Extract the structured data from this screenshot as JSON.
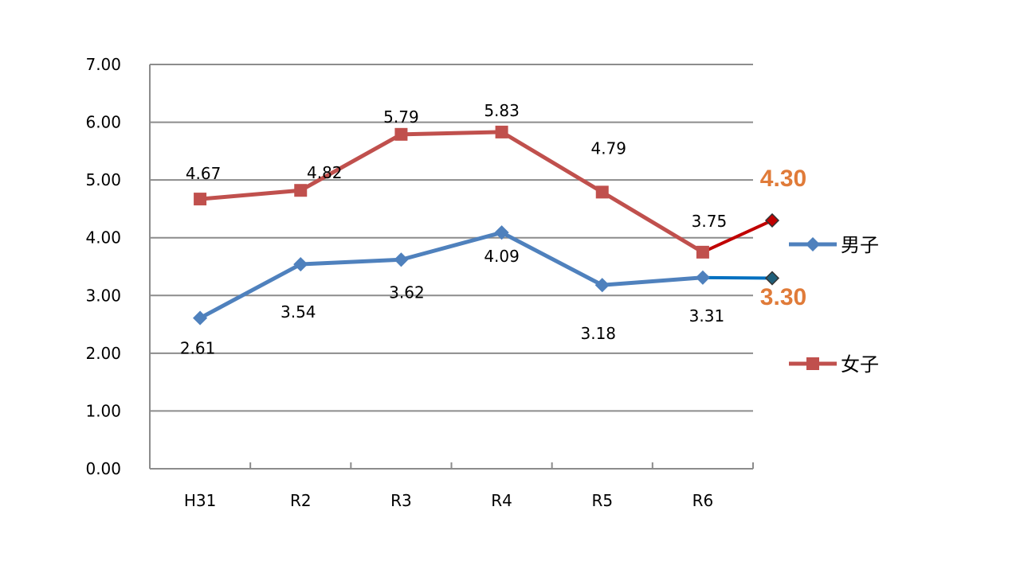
{
  "chart_data": {
    "type": "line",
    "categories": [
      "H31",
      "R2",
      "R3",
      "R4",
      "R5",
      "R6"
    ],
    "ylim": [
      0,
      7
    ],
    "yticks": [
      "0.00",
      "1.00",
      "2.00",
      "3.00",
      "4.00",
      "5.00",
      "6.00",
      "7.00"
    ],
    "grid": true,
    "legend_position": "right",
    "series": [
      {
        "name": "男子",
        "color": "#4F81BD",
        "marker": "diamond",
        "values": [
          2.61,
          3.54,
          3.62,
          4.09,
          3.18,
          3.31
        ],
        "labels": [
          "2.61",
          "3.54",
          "3.62",
          "4.09",
          "3.18",
          "3.31"
        ],
        "projection": {
          "value": 3.3,
          "label": "3.30",
          "line_color": "#0070C0",
          "marker_color": "#1F5F7A"
        }
      },
      {
        "name": "女子",
        "color": "#C0504D",
        "marker": "square",
        "values": [
          4.67,
          4.82,
          5.79,
          5.83,
          4.79,
          3.75
        ],
        "labels": [
          "4.67",
          "4.82",
          "5.79",
          "5.83",
          "4.79",
          "3.75"
        ],
        "projection": {
          "value": 4.3,
          "label": "4.30",
          "line_color": "#C00000",
          "marker_color": "#C00000"
        }
      }
    ],
    "projection_label_color": "#E07B39"
  }
}
